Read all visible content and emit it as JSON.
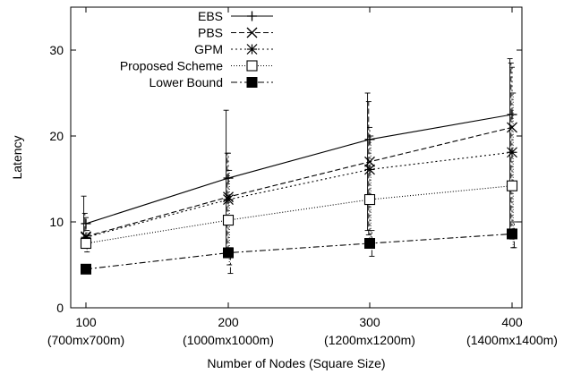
{
  "chart_data": {
    "type": "line",
    "title": "",
    "xlabel": "Number of Nodes (Square Size)",
    "ylabel": "Latency",
    "ylim": [
      0,
      35
    ],
    "yticks": [
      0,
      10,
      20,
      30
    ],
    "grid": false,
    "legend_position": "top-left",
    "x": [
      100,
      200,
      300,
      400
    ],
    "x_tick_labels": [
      "100",
      "200",
      "300",
      "400"
    ],
    "x_tick_sublabels": [
      "(700mx700m)",
      "(1000mx1000m)",
      "(1200mx1200m)",
      "(1400mx1400m)"
    ],
    "series": [
      {
        "name": "EBS",
        "marker": "plus",
        "dash": "solid",
        "values": [
          9.8,
          15.1,
          19.6,
          22.5
        ],
        "err_low": [
          7.5,
          6.5,
          9.0,
          9.0
        ],
        "err_high": [
          13.0,
          23.0,
          25.0,
          29.0
        ]
      },
      {
        "name": "PBS",
        "marker": "x",
        "dash": "dashed",
        "values": [
          8.3,
          12.9,
          17.0,
          21.0
        ],
        "err_low": [
          7.0,
          6.5,
          8.5,
          8.5
        ],
        "err_high": [
          11.0,
          18.0,
          24.0,
          28.5
        ]
      },
      {
        "name": "GPM",
        "marker": "asterisk",
        "dash": "dotted",
        "values": [
          8.2,
          12.6,
          16.1,
          18.1
        ],
        "err_low": [
          7.0,
          6.0,
          8.0,
          8.0
        ],
        "err_high": [
          10.5,
          18.0,
          21.0,
          28.0
        ]
      },
      {
        "name": "Proposed Scheme",
        "marker": "open-square",
        "dash": "fine-dotted",
        "values": [
          7.5,
          10.2,
          12.6,
          14.2
        ],
        "err_low": [
          6.5,
          5.0,
          7.0,
          7.0
        ],
        "err_high": [
          9.0,
          16.0,
          20.0,
          25.0
        ]
      },
      {
        "name": "Lower Bound",
        "marker": "filled-square",
        "dash": "dash-dot",
        "values": [
          4.5,
          6.4,
          7.5,
          8.6
        ],
        "err_low": [
          4.5,
          4.0,
          6.0,
          7.0
        ],
        "err_high": [
          4.5,
          7.0,
          9.0,
          10.0
        ]
      }
    ]
  }
}
